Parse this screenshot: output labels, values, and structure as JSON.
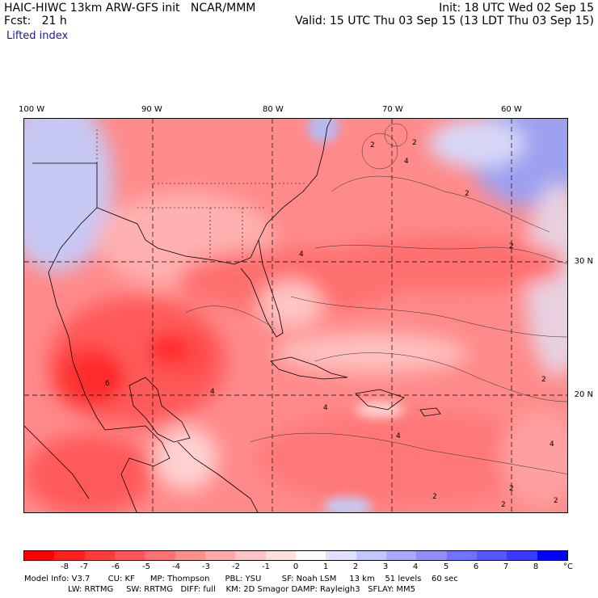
{
  "header": {
    "left1": "HAIC-HIWC 13km ARW-GFS init   NCAR/MMM",
    "left2": "Fcst:   21 h",
    "right1": "Init: 18 UTC Wed 02 Sep 15",
    "right2": "Valid: 15 UTC Thu 03 Sep 15 (13 LDT Thu 03 Sep 15)",
    "field": "Lifted index"
  },
  "longitudes": [
    "100 W",
    "90 W",
    "80 W",
    "70 W",
    "60 W"
  ],
  "latitudes": [
    "30 N",
    "20 N"
  ],
  "legend": {
    "ticks": [
      "-8",
      "-7",
      "-6",
      "-5",
      "-4",
      "-3",
      "-2",
      "-1",
      "0",
      "1",
      "2",
      "3",
      "4",
      "5",
      "6",
      "7",
      "8"
    ],
    "unit": "°C",
    "colors": [
      "#ff0000",
      "#ff2020",
      "#ff3b3b",
      "#ff5757",
      "#ff7272",
      "#ff8e8e",
      "#ffa9a9",
      "#ffc4c4",
      "#ffe0e0",
      "#ffffff",
      "#e0e0ff",
      "#c4c4ff",
      "#a9a9ff",
      "#8e8eff",
      "#7272ff",
      "#5757ff",
      "#3b3bff",
      "#0000ff"
    ]
  },
  "info": {
    "line1": "Model Info: V3.7       CU: KF      MP: Thompson      PBL: YSU        SF: Noah LSM     13 km    51 levels    60 sec",
    "line2": "                 LW: RRTMG     SW: RRTMG   DIFF: full    KM: 2D Smagor DAMP: Rayleigh3   SFLAY: MM5"
  },
  "contour_labels": [
    "2",
    "2",
    "2",
    "4",
    "4",
    "2",
    "2",
    "4",
    "4",
    "2",
    "4",
    "2",
    "2",
    "4",
    "2",
    "6"
  ]
}
